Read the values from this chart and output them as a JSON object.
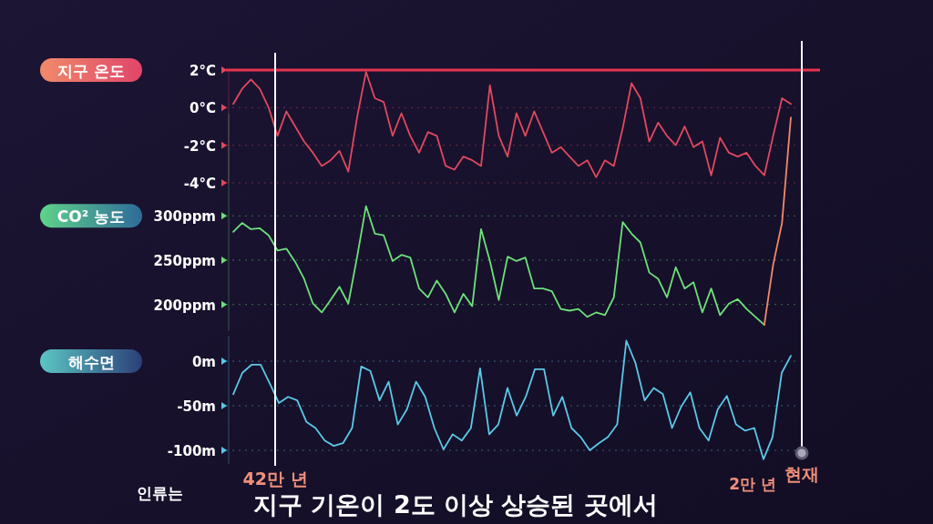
{
  "chart_data": [
    {
      "type": "line",
      "title": "지구 온도",
      "categories": [
        null,
        null,
        null,
        null,
        null,
        null,
        null,
        null,
        null,
        null,
        null,
        null,
        null,
        null,
        null,
        null,
        null,
        null,
        null,
        null,
        null,
        null,
        null,
        null,
        null,
        null,
        null,
        null,
        null,
        null,
        null,
        null,
        null,
        null,
        null,
        null,
        null,
        null,
        null,
        null,
        null,
        null,
        null,
        null,
        null,
        null,
        null,
        null,
        null,
        null,
        null,
        null,
        null,
        null,
        null,
        null,
        null,
        null,
        null,
        null,
        null,
        null,
        null,
        null
      ],
      "series": [
        {
          "color": "#e0495e",
          "values": [
            0.2,
            1.0,
            1.5,
            1.0,
            0.0,
            -1.5,
            -0.2,
            -1.0,
            -1.8,
            -2.4,
            -3.1,
            -2.8,
            -2.3,
            -3.4,
            -0.5,
            1.9,
            0.5,
            0.3,
            -1.5,
            -0.3,
            -1.5,
            -2.4,
            -1.3,
            -1.5,
            -3.1,
            -3.3,
            -2.6,
            -2.8,
            -3.1,
            1.2,
            -1.5,
            -2.6,
            -0.3,
            -1.5,
            -0.2,
            -1.3,
            -2.4,
            -2.1,
            -2.6,
            -3.1,
            -2.8,
            -3.7,
            -2.8,
            -3.1,
            -1.1,
            1.3,
            0.5,
            -1.8,
            -0.8,
            -1.5,
            -2.0,
            -1.0,
            -2.1,
            -1.8,
            -3.6,
            -1.6,
            -2.4,
            -2.6,
            -2.4,
            -3.1,
            -3.6,
            -1.5,
            0.5,
            0.2
          ]
        }
      ],
      "ylim": [
        -4,
        2
      ],
      "yticks": [
        {
          "value": 2,
          "label": "2°C"
        },
        {
          "value": 0,
          "label": "0°C"
        },
        {
          "value": -2,
          "label": "-2°C"
        },
        {
          "value": -4,
          "label": "-4°C"
        }
      ],
      "grid": "y",
      "tick_labels": "y",
      "ref_lines": [
        {
          "axis": "y",
          "value": 2,
          "color": "#e8334f"
        }
      ]
    },
    {
      "type": "line",
      "title": "CO² 농도",
      "categories": [
        null,
        null,
        null,
        null,
        null,
        null,
        null,
        null,
        null,
        null,
        null,
        null,
        null,
        null,
        null,
        null,
        null,
        null,
        null,
        null,
        null,
        null,
        null,
        null,
        null,
        null,
        null,
        null,
        null,
        null,
        null,
        null,
        null,
        null,
        null,
        null,
        null,
        null,
        null,
        null,
        null,
        null,
        null,
        null,
        null,
        null,
        null,
        null,
        null,
        null,
        null,
        null,
        null,
        null,
        null,
        null,
        null,
        null,
        null,
        null,
        null,
        null,
        null,
        null
      ],
      "series": [
        {
          "color": "#6ee07a",
          "values": [
            282,
            292,
            285,
            286,
            278,
            261,
            263,
            248,
            229,
            201,
            191,
            205,
            220,
            201,
            254,
            311,
            280,
            278,
            249,
            256,
            253,
            218,
            208,
            227,
            212,
            191,
            212,
            198,
            285,
            249,
            205,
            254,
            249,
            253,
            218,
            218,
            215,
            195,
            193,
            195,
            186,
            191,
            188,
            208,
            293,
            280,
            270,
            236,
            229,
            208,
            242,
            218,
            225,
            191,
            218,
            188,
            201,
            206,
            195,
            186,
            177,
            null,
            null,
            null
          ]
        },
        {
          "color": "#f08a6a",
          "values": [
            null,
            null,
            null,
            null,
            null,
            null,
            null,
            null,
            null,
            null,
            null,
            null,
            null,
            null,
            null,
            null,
            null,
            null,
            null,
            null,
            null,
            null,
            null,
            null,
            null,
            null,
            null,
            null,
            null,
            null,
            null,
            null,
            null,
            null,
            null,
            null,
            null,
            null,
            null,
            null,
            null,
            null,
            null,
            null,
            null,
            null,
            null,
            null,
            null,
            null,
            null,
            null,
            null,
            null,
            null,
            null,
            null,
            null,
            null,
            null,
            177,
            245,
            292,
            411
          ]
        }
      ],
      "ylim": [
        170,
        415
      ],
      "yticks": [
        {
          "value": 300,
          "label": "300ppm"
        },
        {
          "value": 250,
          "label": "250ppm"
        },
        {
          "value": 200,
          "label": "200ppm"
        }
      ],
      "grid": "y",
      "tick_labels": "y"
    },
    {
      "type": "line",
      "title": "해수면",
      "categories": [
        null,
        null,
        null,
        null,
        null,
        null,
        null,
        null,
        null,
        null,
        null,
        null,
        null,
        null,
        null,
        null,
        null,
        null,
        null,
        null,
        null,
        null,
        null,
        null,
        null,
        null,
        null,
        null,
        null,
        null,
        null,
        null,
        null,
        null,
        null,
        null,
        null,
        null,
        null,
        null,
        null,
        null,
        null,
        null,
        null,
        null,
        null,
        null,
        null,
        null,
        null,
        null,
        null,
        null,
        null,
        null,
        null,
        null,
        null,
        null,
        null,
        null
      ],
      "series": [
        {
          "color": "#5cc8e8",
          "values": [
            -37,
            -13,
            -4,
            -4,
            -25,
            -47,
            -40,
            -44,
            -68,
            -75,
            -89,
            -95,
            -92,
            -75,
            -6,
            -11,
            -44,
            -23,
            -71,
            -54,
            -23,
            -40,
            -75,
            -99,
            -82,
            -89,
            -75,
            -8,
            -82,
            -71,
            -30,
            -61,
            -40,
            -9,
            -9,
            -61,
            -40,
            -75,
            -85,
            -100,
            -92,
            -85,
            -71,
            23,
            -2,
            -44,
            -30,
            -37,
            -75,
            -51,
            -35,
            -75,
            -89,
            -54,
            -39,
            -71,
            -78,
            -75,
            -110,
            -85,
            -13,
            6
          ]
        }
      ],
      "ylim": [
        -115,
        28
      ],
      "yticks": [
        {
          "value": 0,
          "label": "0m"
        },
        {
          "value": -50,
          "label": "-50m"
        },
        {
          "value": -100,
          "label": "-100m"
        }
      ],
      "grid": "y",
      "tick_labels": "y",
      "annotations": [
        "42만 년",
        "2만 년",
        "현재",
        "인류는",
        "지구 기온이 2도 이상 상승된 곳에서"
      ]
    }
  ]
}
